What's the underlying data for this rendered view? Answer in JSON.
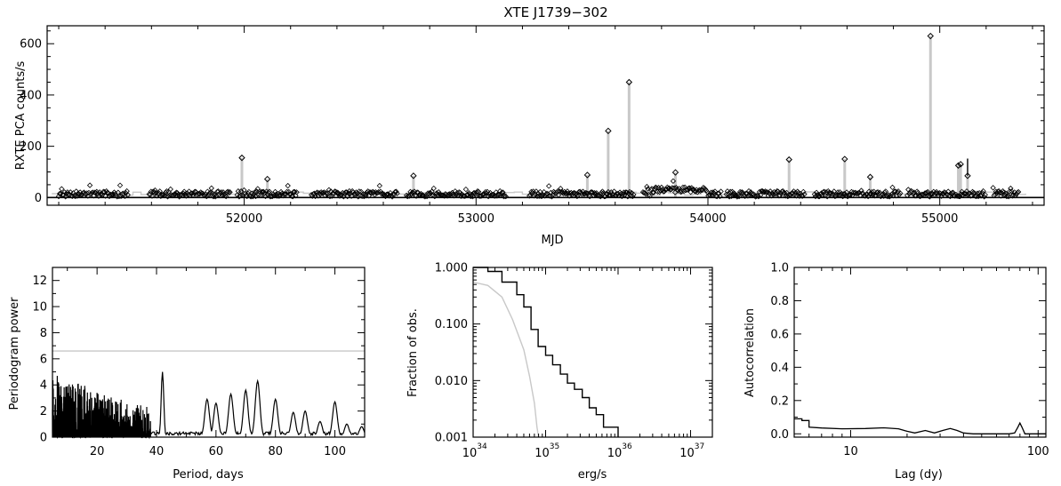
{
  "chart_data": [
    {
      "type": "scatter",
      "title": "XTE J1739−302",
      "xlabel": "MJD",
      "ylabel": "RXTE PCA counts/s",
      "xlim": [
        51150,
        55450
      ],
      "ylim": [
        -30,
        670
      ],
      "xticks": [
        52000,
        53000,
        54000,
        55000
      ],
      "xtick_labels": [
        "52000",
        "53000",
        "54000",
        "55000"
      ],
      "yticks": [
        0,
        200,
        400,
        600
      ],
      "ytick_labels": [
        "0",
        "200",
        "400",
        "600"
      ],
      "zero_line": 0,
      "observing_windows": [
        [
          51200,
          51500
        ],
        [
          51590,
          51940
        ],
        [
          51970,
          52230
        ],
        [
          52290,
          52660
        ],
        [
          52700,
          53130
        ],
        [
          53230,
          53680
        ],
        [
          53720,
          54060
        ],
        [
          54080,
          54420
        ],
        [
          54460,
          54830
        ],
        [
          54860,
          55200
        ],
        [
          55230,
          55340
        ]
      ],
      "flares": [
        {
          "mjd": 51990,
          "rate": 155
        },
        {
          "mjd": 52100,
          "rate": 72
        },
        {
          "mjd": 52730,
          "rate": 85
        },
        {
          "mjd": 53480,
          "rate": 88
        },
        {
          "mjd": 53570,
          "rate": 260
        },
        {
          "mjd": 53660,
          "rate": 450
        },
        {
          "mjd": 53860,
          "rate": 98
        },
        {
          "mjd": 54350,
          "rate": 148
        },
        {
          "mjd": 54590,
          "rate": 150
        },
        {
          "mjd": 54700,
          "rate": 80
        },
        {
          "mjd": 54960,
          "rate": 630
        },
        {
          "mjd": 55080,
          "rate": 125
        },
        {
          "mjd": 55090,
          "rate": 130
        },
        {
          "mjd": 55120,
          "rate": 85
        }
      ],
      "error_bar": {
        "mjd": 55120,
        "low": 85,
        "high": 152
      },
      "background_level": 15
    },
    {
      "type": "line",
      "title": "",
      "xlabel": "Period, days",
      "ylabel": "Periodogram power",
      "xlim": [
        5,
        110
      ],
      "ylim": [
        0,
        13
      ],
      "xticks": [
        20,
        40,
        60,
        80,
        100
      ],
      "xtick_labels": [
        "20",
        "40",
        "60",
        "80",
        "100"
      ],
      "yticks": [
        0,
        2,
        4,
        6,
        8,
        10,
        12
      ],
      "ytick_labels": [
        "0",
        "2",
        "4",
        "6",
        "8",
        "10",
        "12"
      ],
      "significance_level": 6.6,
      "peaks": [
        [
          42,
          5.0
        ],
        [
          57,
          2.9
        ],
        [
          60,
          2.6
        ],
        [
          65,
          3.3
        ],
        [
          70,
          3.6
        ],
        [
          74,
          4.3
        ],
        [
          80,
          2.9
        ],
        [
          86,
          1.9
        ],
        [
          90,
          2.0
        ],
        [
          95,
          1.2
        ],
        [
          100,
          2.7
        ],
        [
          104,
          1.0
        ],
        [
          109,
          0.8
        ]
      ]
    },
    {
      "type": "line",
      "title": "",
      "xlabel": "erg/s",
      "ylabel": "Fraction of obs.",
      "x_scale": "log",
      "y_scale": "log",
      "xlim": [
        1e+34,
        2e+37
      ],
      "ylim": [
        0.001,
        1.0
      ],
      "xtick_labels": [
        {
          "base": "10",
          "exp": "34",
          "value": 1e+34
        },
        {
          "base": "10",
          "exp": "35",
          "value": 1e+35
        },
        {
          "base": "10",
          "exp": "36",
          "value": 1e+36
        },
        {
          "base": "10",
          "exp": "37",
          "value": 1e+37
        }
      ],
      "yticks": [
        0.001,
        0.01,
        0.1,
        1.0
      ],
      "ytick_labels": [
        "0.001",
        "0.010",
        "0.100",
        "1.000"
      ],
      "series": [
        {
          "x": [
            1e+34,
            1.6e+34,
            2.5e+34,
            4e+34,
            5e+34,
            6.3e+34,
            7.9e+34,
            1e+35,
            1.25e+35,
            1.6e+35,
            2e+35,
            2.5e+35,
            3.2e+35,
            4e+35,
            5e+35,
            6.3e+35,
            1e+36
          ],
          "y": [
            1.0,
            0.85,
            0.55,
            0.33,
            0.2,
            0.08,
            0.04,
            0.028,
            0.019,
            0.013,
            0.009,
            0.007,
            0.005,
            0.0033,
            0.0025,
            0.0015,
            0.001
          ]
        },
        {
          "x": [
            1e+34,
            1.6e+34,
            2.5e+34,
            3.5e+34,
            5e+34,
            6e+34,
            7e+34,
            7.6e+34,
            8e+34
          ],
          "y": [
            0.55,
            0.48,
            0.3,
            0.12,
            0.035,
            0.012,
            0.004,
            0.0015,
            0.001
          ]
        }
      ]
    },
    {
      "type": "line",
      "title": "",
      "xlabel": "Lag (dy)",
      "ylabel": "Autocorrelation",
      "x_scale": "log",
      "xlim": [
        5,
        110
      ],
      "ylim": [
        -0.02,
        1.0
      ],
      "xticks": [
        10,
        100
      ],
      "xtick_labels": [
        "10",
        "100"
      ],
      "yticks": [
        0,
        0.2,
        0.4,
        0.6,
        0.8,
        1.0
      ],
      "ytick_labels": [
        "0.0",
        "0.2",
        "0.4",
        "0.6",
        "0.8",
        "1.0"
      ],
      "series": [
        {
          "x": [
            5,
            5.5,
            6,
            7,
            9,
            12,
            15,
            18,
            20,
            22,
            25,
            28,
            31,
            34,
            37,
            40,
            45,
            50,
            60,
            70,
            75,
            78,
            80,
            82,
            85,
            90,
            100,
            110
          ],
          "y": [
            0.09,
            0.08,
            0.04,
            0.035,
            0.03,
            0.032,
            0.036,
            0.03,
            0.015,
            0.005,
            0.02,
            0.005,
            0.02,
            0.032,
            0.02,
            0.005,
            0.0,
            0.0,
            0.0,
            0.0,
            0.005,
            0.04,
            0.065,
            0.04,
            0.0,
            0.0,
            0.0,
            0.0
          ]
        }
      ]
    }
  ]
}
